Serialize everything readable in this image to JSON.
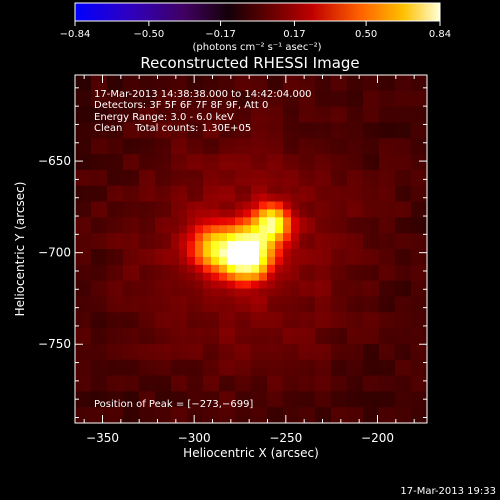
{
  "chart_data": {
    "type": "heatmap",
    "title": "Reconstructed RHESSI Image",
    "xlabel": "Heliocentric X (arcsec)",
    "ylabel": "Heliocentric Y (arcsec)",
    "xlim": [
      -365,
      -173
    ],
    "ylim": [
      -793,
      -603
    ],
    "x_ticks": [
      {
        "v": -350,
        "label": "−350"
      },
      {
        "v": -300,
        "label": "−300"
      },
      {
        "v": -250,
        "label": "−250"
      },
      {
        "v": -200,
        "label": "−200"
      }
    ],
    "y_ticks": [
      {
        "v": -650,
        "label": "−650"
      },
      {
        "v": -700,
        "label": "−700"
      },
      {
        "v": -750,
        "label": "−750"
      }
    ],
    "colorbar": {
      "range": [
        -0.84,
        0.84
      ],
      "units_label": "(photons cm⁻² s⁻¹ asec⁻²)",
      "colormap": "hot",
      "ticks": [
        {
          "v": -0.84,
          "label": "−0.84"
        },
        {
          "v": -0.5,
          "label": "−0.50"
        },
        {
          "v": -0.17,
          "label": "−0.17"
        },
        {
          "v": 0.17,
          "label": "0.17"
        },
        {
          "v": 0.5,
          "label": "0.50"
        },
        {
          "v": 0.84,
          "label": "0.84"
        }
      ]
    },
    "annotations": [
      "17-Mar-2013 14:38:38.000 to 14:42:04.000",
      "Detectors: 3F 5F 6F 7F 8F 9F, Att 0",
      "Energy Range: 3.0 - 6.0 keV",
      "Clean    Total counts: 1.30E+05"
    ],
    "peak_label": "Position of Peak = [−273,−699]",
    "peak": {
      "x": -273,
      "y": -699
    },
    "sources": [
      {
        "x": -272,
        "y": -701,
        "amp": 0.84,
        "sigma": 9
      },
      {
        "x": -258,
        "y": -684,
        "amp": 0.55,
        "sigma": 7
      },
      {
        "x": -290,
        "y": -697,
        "amp": 0.35,
        "sigma": 9
      }
    ]
  },
  "footer": {
    "timestamp": "17-Mar-2013 19:33"
  }
}
